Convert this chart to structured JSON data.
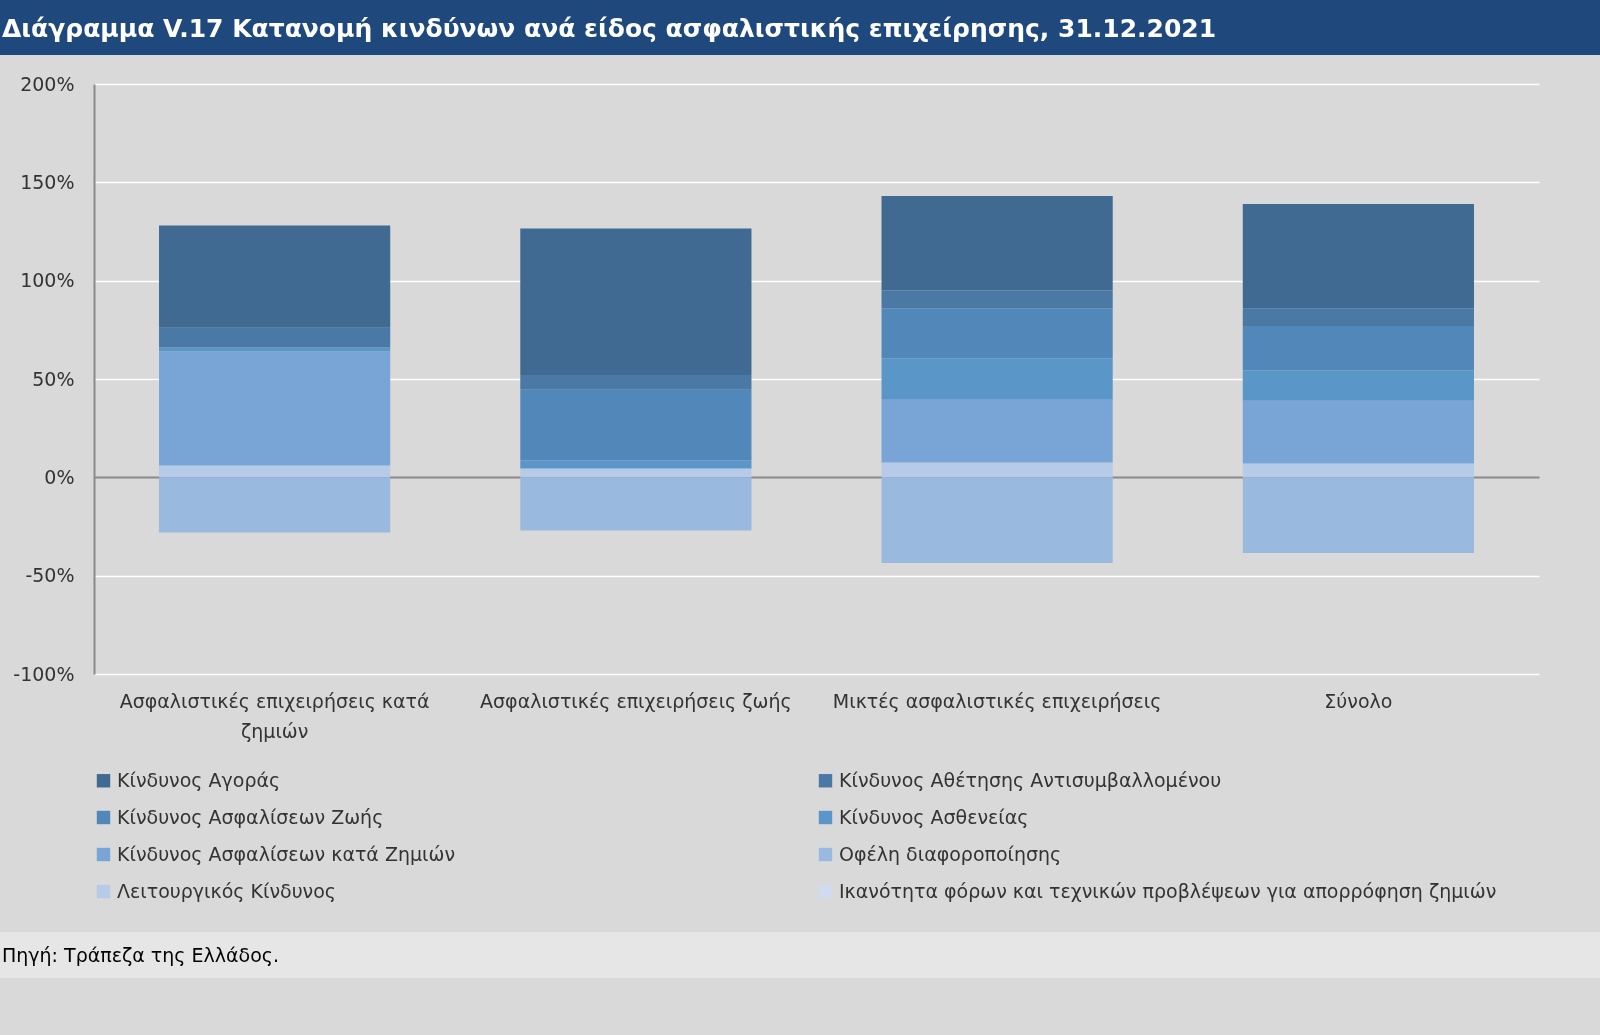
{
  "chart_data": {
    "type": "bar",
    "stacked": true,
    "title": "Διάγραμμα V.17 Κατανομή κινδύνων ανά είδος ασφαλιστικής επιχείρησης, 31.12.2021",
    "categories": [
      "Ασφαλιστικές επιχειρήσεις κατά ζημιών",
      "Ασφαλιστικές επιχειρήσεις ζωής",
      "Μικτές ασφαλιστικές επιχειρήσεις",
      "Σύνολο"
    ],
    "series": [
      {
        "name": "Ικανότητα φόρων και τεχνικών προβλέψεων για απορρόφηση ζημιών",
        "color": "#d0dcee",
        "values": [
          0,
          0,
          0,
          0
        ]
      },
      {
        "name": "Λειτουργικός Κίνδυνος",
        "color": "#b5cbe7",
        "values": [
          6,
          4.5,
          7.5,
          7
        ]
      },
      {
        "name": "Οφέλη διαφοροποίησης",
        "color": "#9ab9de",
        "values": [
          -28,
          -27,
          -43.5,
          -38.5
        ]
      },
      {
        "name": "Κίνδυνος Ασφαλίσεων κατά Ζημιών",
        "color": "#78a5d5",
        "values": [
          58,
          0,
          32,
          32
        ]
      },
      {
        "name": "Κίνδυνος Ασθενείας",
        "color": "#5b96c9",
        "values": [
          2,
          4,
          21,
          15.5
        ]
      },
      {
        "name": "Κίνδυνος Ασφαλίσεων Ζωής",
        "color": "#5287ba",
        "values": [
          0,
          36,
          25.5,
          22.5
        ]
      },
      {
        "name": "Κίνδυνος Αθέτησης Αντισυμβαλλομένου",
        "color": "#4a79a5",
        "values": [
          10,
          7.5,
          9,
          9
        ]
      },
      {
        "name": "Κίνδυνος Αγοράς",
        "color": "#406a91",
        "values": [
          52,
          74.5,
          48,
          53
        ]
      }
    ],
    "ylim": [
      -100,
      200
    ],
    "yticks": [
      {
        "value": -100,
        "label": "-100%"
      },
      {
        "value": -50,
        "label": "-50%"
      },
      {
        "value": 0,
        "label": "0%"
      },
      {
        "value": 50,
        "label": "50%"
      },
      {
        "value": 100,
        "label": "100%"
      },
      {
        "value": 150,
        "label": "150%"
      },
      {
        "value": 200,
        "label": "200%"
      }
    ],
    "grid": "y",
    "legend": "bottom",
    "annotations": [
      "Πηγή: Τράπεζα της Ελλάδος."
    ]
  }
}
